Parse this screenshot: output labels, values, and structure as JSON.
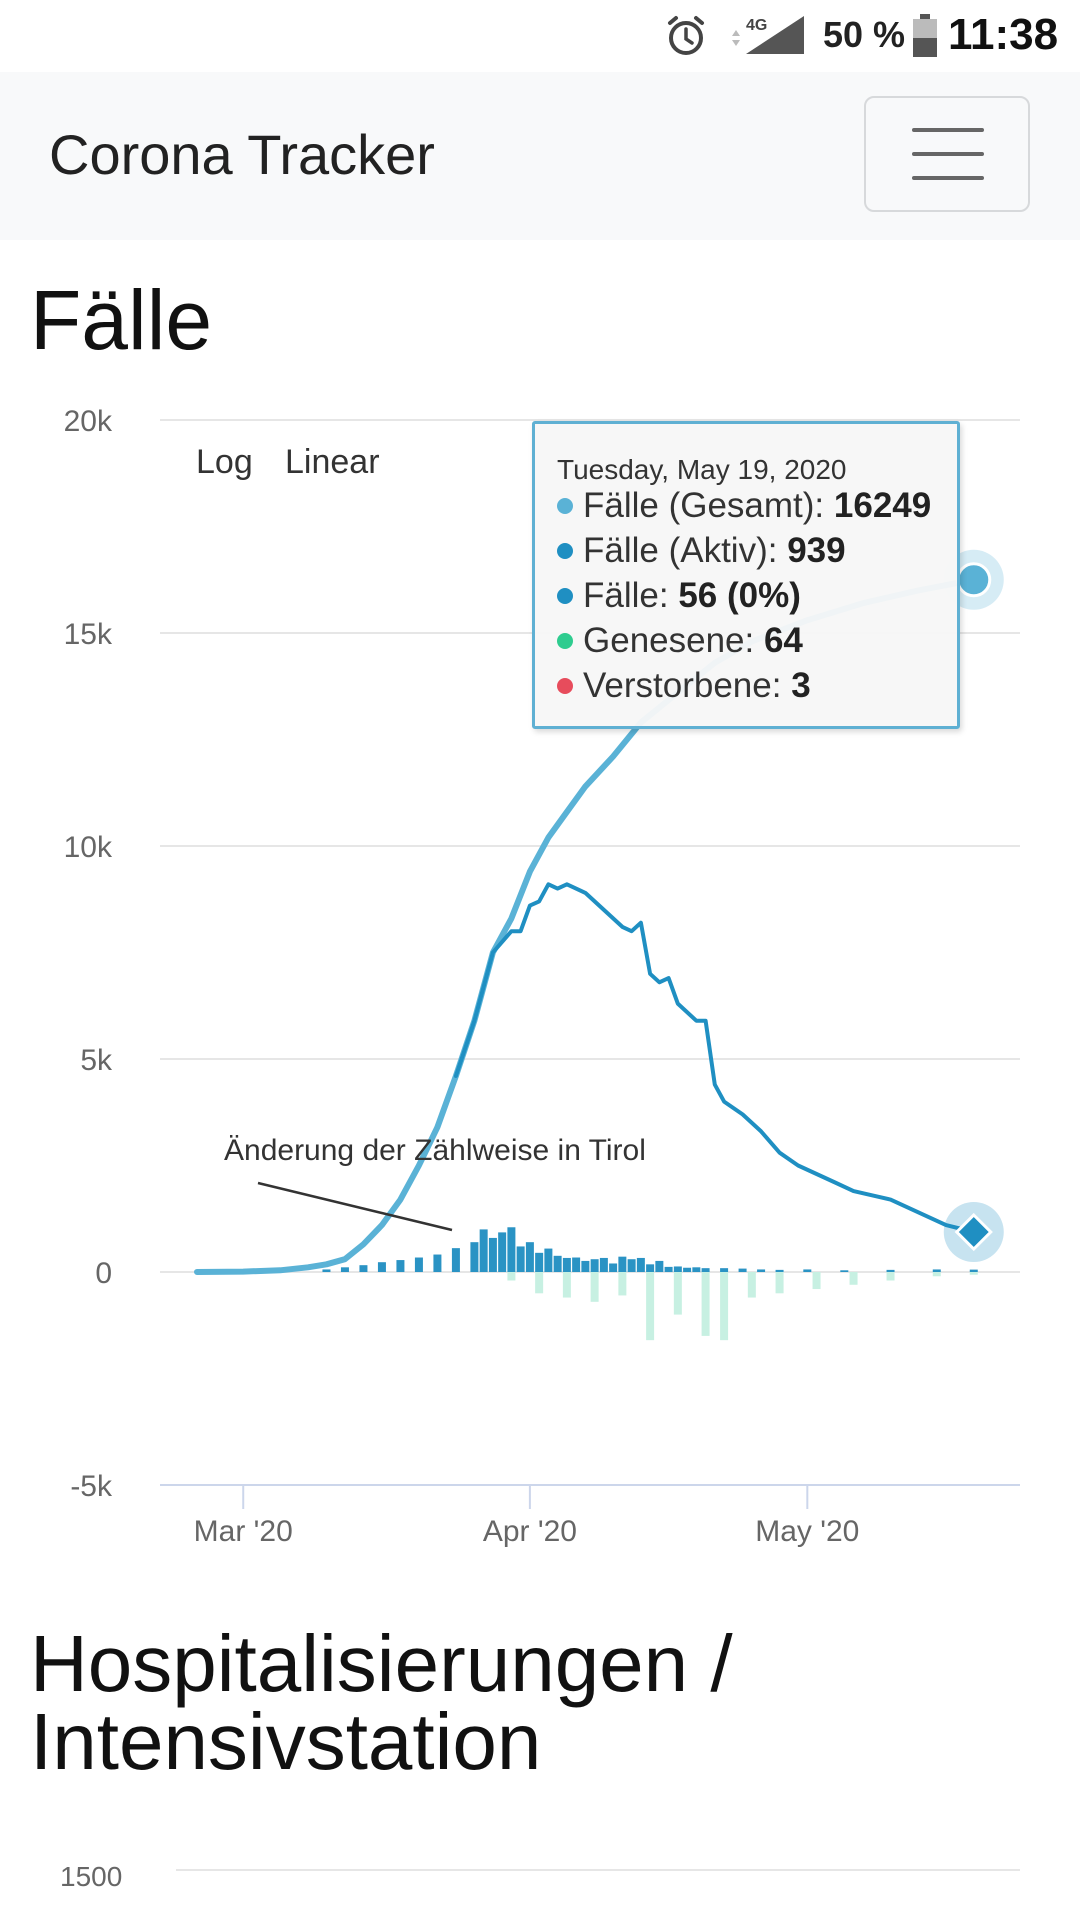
{
  "status_bar": {
    "battery_percent": "50 %",
    "time": "11:38",
    "network": "4G"
  },
  "navbar": {
    "brand": "Corona Tracker"
  },
  "sections": {
    "cases_title": "Fälle",
    "hosp_title_line1": "Hospitalisierungen /",
    "hosp_title_line2": "Intensivstation"
  },
  "scale_buttons": {
    "log": "Log",
    "linear": "Linear"
  },
  "tooltip": {
    "date": "Tuesday, May 19, 2020",
    "rows": [
      {
        "label": "Fälle (Gesamt): ",
        "value": "16249",
        "color": "#5ab2d6"
      },
      {
        "label": "Fälle (Aktiv): ",
        "value": "939",
        "color": "#1f8fc2"
      },
      {
        "label": "Fälle: ",
        "value": "56 (0%)",
        "color": "#1f8fc2"
      },
      {
        "label": "Genesene: ",
        "value": "64",
        "color": "#2ecc8f"
      },
      {
        "label": "Verstorbene: ",
        "value": "3",
        "color": "#e74c5c"
      }
    ]
  },
  "colors": {
    "total": "#5ab2d6",
    "active": "#1f8fc2",
    "new_cases_bar": "#2a93c4",
    "recovered_bar": "#c7f0e2",
    "grid": "#e6e6e6",
    "axis": "#ccd6eb"
  },
  "chart_data": {
    "type": "line",
    "ylim": [
      -5000,
      20000
    ],
    "y_ticks": [
      "20k",
      "15k",
      "10k",
      "5k",
      "0",
      "-5k"
    ],
    "x_ticks": [
      "Mar '20",
      "Apr '20",
      "May '20"
    ],
    "annotation": "Änderung der Zählweise in Tirol",
    "series": [
      {
        "name": "Fälle (Gesamt)",
        "x": [
          "2020-02-25",
          "2020-03-01",
          "2020-03-05",
          "2020-03-08",
          "2020-03-10",
          "2020-03-12",
          "2020-03-14",
          "2020-03-16",
          "2020-03-18",
          "2020-03-20",
          "2020-03-22",
          "2020-03-24",
          "2020-03-26",
          "2020-03-28",
          "2020-03-30",
          "2020-04-01",
          "2020-04-03",
          "2020-04-05",
          "2020-04-07",
          "2020-04-10",
          "2020-04-13",
          "2020-04-17",
          "2020-04-21",
          "2020-04-25",
          "2020-05-01",
          "2020-05-07",
          "2020-05-13",
          "2020-05-19"
        ],
        "values": [
          0,
          10,
          40,
          110,
          180,
          300,
          650,
          1100,
          1700,
          2500,
          3400,
          4600,
          5900,
          7500,
          8300,
          9400,
          10200,
          10800,
          11400,
          12100,
          12900,
          13600,
          14300,
          14800,
          15300,
          15700,
          16000,
          16249
        ]
      },
      {
        "name": "Fälle (Aktiv)",
        "x": [
          "2020-03-24",
          "2020-03-26",
          "2020-03-28",
          "2020-03-30",
          "2020-03-31",
          "2020-04-01",
          "2020-04-02",
          "2020-04-03",
          "2020-04-04",
          "2020-04-05",
          "2020-04-07",
          "2020-04-09",
          "2020-04-11",
          "2020-04-12",
          "2020-04-13",
          "2020-04-14",
          "2020-04-15",
          "2020-04-16",
          "2020-04-17",
          "2020-04-19",
          "2020-04-20",
          "2020-04-21",
          "2020-04-22",
          "2020-04-24",
          "2020-04-26",
          "2020-04-28",
          "2020-04-30",
          "2020-05-02",
          "2020-05-04",
          "2020-05-06",
          "2020-05-08",
          "2020-05-10",
          "2020-05-12",
          "2020-05-14",
          "2020-05-16",
          "2020-05-19"
        ],
        "values": [
          4600,
          5900,
          7500,
          8000,
          8000,
          8600,
          8700,
          9100,
          9000,
          9100,
          8900,
          8500,
          8100,
          8000,
          8200,
          7000,
          6800,
          6900,
          6300,
          5900,
          5900,
          4400,
          4000,
          3700,
          3300,
          2800,
          2500,
          2300,
          2100,
          1900,
          1800,
          1700,
          1500,
          1300,
          1100,
          939
        ]
      },
      {
        "name": "Fälle",
        "x": [
          "2020-03-10",
          "2020-03-12",
          "2020-03-14",
          "2020-03-16",
          "2020-03-18",
          "2020-03-20",
          "2020-03-22",
          "2020-03-24",
          "2020-03-26",
          "2020-03-27",
          "2020-03-28",
          "2020-03-29",
          "2020-03-30",
          "2020-03-31",
          "2020-04-01",
          "2020-04-02",
          "2020-04-03",
          "2020-04-04",
          "2020-04-05",
          "2020-04-06",
          "2020-04-07",
          "2020-04-08",
          "2020-04-09",
          "2020-04-10",
          "2020-04-11",
          "2020-04-12",
          "2020-04-13",
          "2020-04-14",
          "2020-04-15",
          "2020-04-16",
          "2020-04-17",
          "2020-04-18",
          "2020-04-19",
          "2020-04-20",
          "2020-04-22",
          "2020-04-24",
          "2020-04-26",
          "2020-04-28",
          "2020-05-01",
          "2020-05-05",
          "2020-05-10",
          "2020-05-15",
          "2020-05-19"
        ],
        "values": [
          60,
          110,
          160,
          230,
          280,
          340,
          410,
          560,
          700,
          1000,
          800,
          930,
          1050,
          600,
          700,
          450,
          550,
          380,
          330,
          340,
          260,
          300,
          330,
          200,
          360,
          300,
          330,
          180,
          260,
          120,
          130,
          100,
          110,
          90,
          90,
          80,
          60,
          50,
          60,
          40,
          50,
          60,
          56
        ]
      },
      {
        "name": "Genesene",
        "x": [
          "2020-03-30",
          "2020-04-02",
          "2020-04-05",
          "2020-04-08",
          "2020-04-11",
          "2020-04-14",
          "2020-04-17",
          "2020-04-20",
          "2020-04-22",
          "2020-04-25",
          "2020-04-28",
          "2020-05-02",
          "2020-05-06",
          "2020-05-10",
          "2020-05-15",
          "2020-05-19"
        ],
        "values": [
          -200,
          -500,
          -600,
          -700,
          -550,
          -1600,
          -1000,
          -1500,
          -1600,
          -600,
          -500,
          -400,
          -300,
          -200,
          -100,
          -64
        ]
      }
    ]
  }
}
